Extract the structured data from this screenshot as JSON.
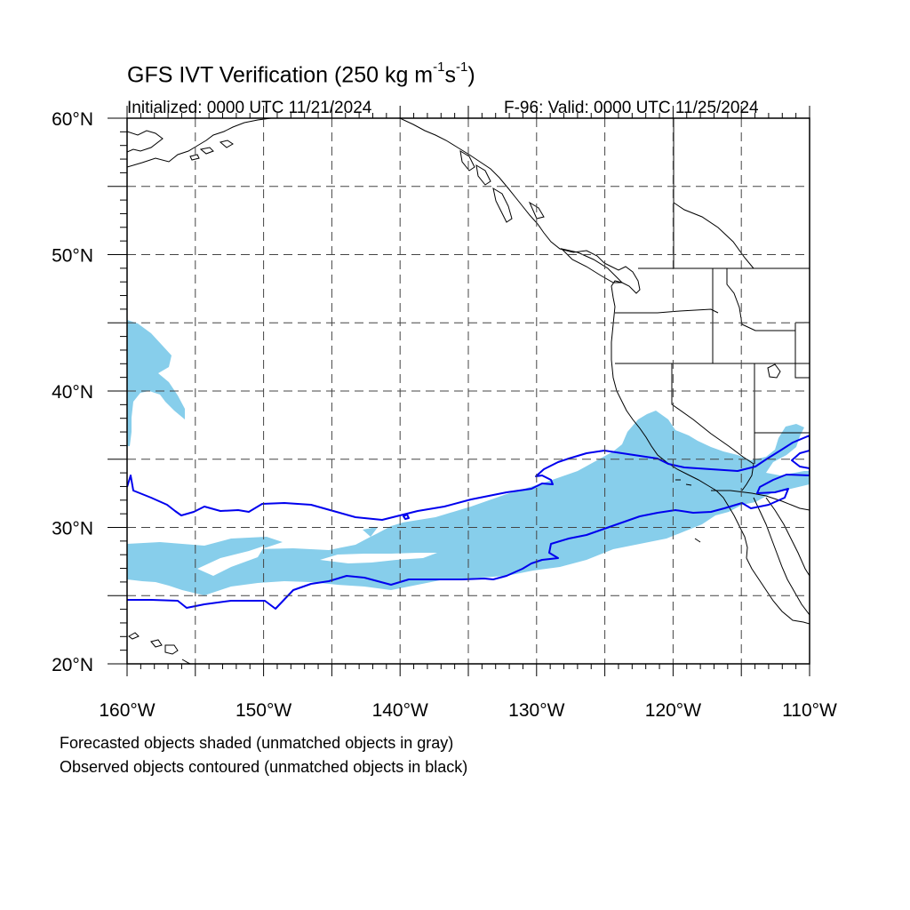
{
  "title": {
    "main": "GFS IVT Verification (250 kg m",
    "exp1": "-1",
    "mid": "s",
    "exp2": "-1",
    "end": ")"
  },
  "init_text": "Initialized: 0000 UTC 11/21/2024",
  "valid_text": "F-96: Valid: 0000 UTC 11/25/2024",
  "footnotes": [
    "Forecasted objects shaded (unmatched objects in gray)",
    "Observed objects contoured (unmatched objects in black)"
  ],
  "colors": {
    "forecast_fill": "#87ceeb",
    "observed_contour": "#0000ee",
    "coastline": "#000000",
    "grid": "#444444"
  },
  "map": {
    "projection": "latlon",
    "lon_range": [
      -160,
      -110
    ],
    "lat_range": [
      20,
      60
    ],
    "grid_interval": 5,
    "lat_labels": [
      {
        "lat": 60,
        "text": "60°N"
      },
      {
        "lat": 50,
        "text": "50°N"
      },
      {
        "lat": 40,
        "text": "40°N"
      },
      {
        "lat": 30,
        "text": "30°N"
      },
      {
        "lat": 20,
        "text": "20°N"
      }
    ],
    "lon_labels": [
      {
        "lon": -160,
        "text": "160°W"
      },
      {
        "lon": -150,
        "text": "150°W"
      },
      {
        "lon": -140,
        "text": "140°W"
      },
      {
        "lon": -130,
        "text": "130°W"
      },
      {
        "lon": -120,
        "text": "120°W"
      },
      {
        "lon": -110,
        "text": "110°W"
      }
    ]
  }
}
